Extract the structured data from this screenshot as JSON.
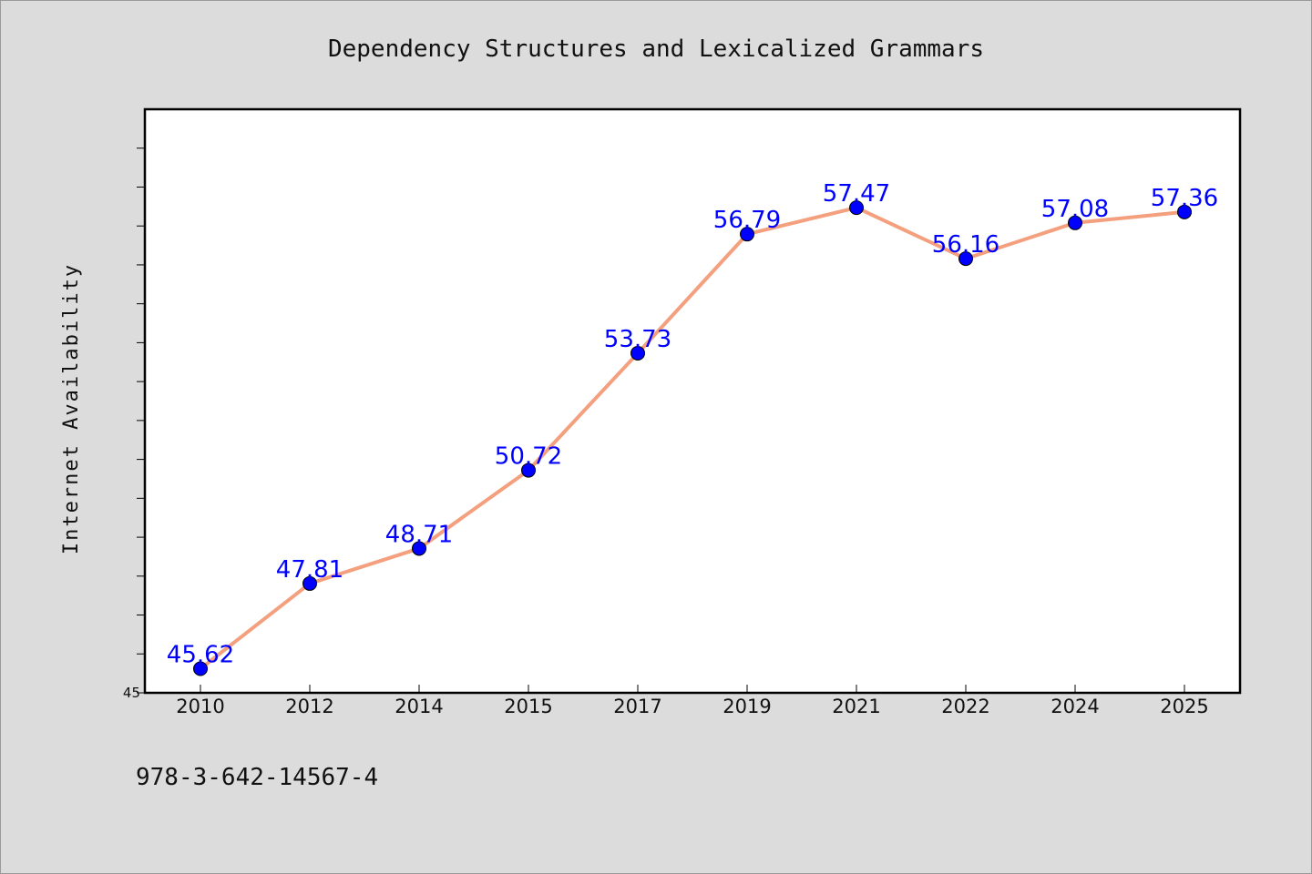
{
  "chart_data": {
    "type": "line",
    "title": "Dependency Structures and Lexicalized Grammars",
    "xlabel": "",
    "ylabel": "Internet Availability",
    "categories": [
      "2010",
      "2012",
      "2014",
      "2015",
      "2017",
      "2019",
      "2021",
      "2022",
      "2024",
      "2025"
    ],
    "series": [
      {
        "values": [
          45.62,
          47.81,
          48.71,
          50.72,
          53.73,
          56.79,
          57.47,
          56.16,
          57.08,
          57.36
        ],
        "labels": [
          "45.62",
          "47.81",
          "48.71",
          "50.72",
          "53.73",
          "56.79",
          "57.47",
          "56.16",
          "57.08",
          "57.36"
        ]
      }
    ],
    "ylim": [
      45,
      60
    ],
    "yticks": [
      45
    ],
    "y_minor_ticks": [
      46,
      47,
      48,
      49,
      50,
      51,
      52,
      53,
      54,
      55,
      56,
      57,
      58,
      59
    ],
    "y_tick_labels": [
      "45"
    ],
    "grid": false,
    "legend": "none",
    "colors": {
      "line": "#f4a07f",
      "marker": "#0000ff",
      "label": "#0000ff",
      "background": "#dcdcdc",
      "plot_background": "#ffffff"
    }
  },
  "footnote": "978-3-642-14567-4"
}
